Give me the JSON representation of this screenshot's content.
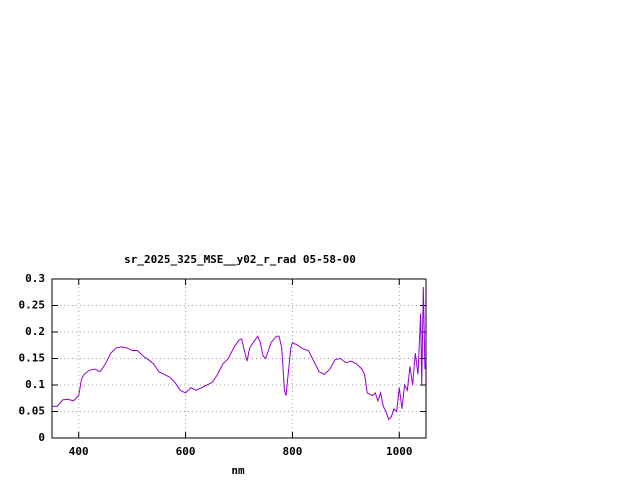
{
  "chart_data": {
    "type": "line",
    "title": "sr_2025_325_MSE__y02_r_rad 05-58-00",
    "x_label": "nm",
    "xlim": [
      350,
      1050
    ],
    "ylim": [
      0,
      0.3
    ],
    "xticks": [
      400,
      600,
      800,
      1000
    ],
    "yticks": [
      0,
      0.05,
      0.1,
      0.15,
      0.2,
      0.25,
      0.3
    ],
    "grid": true,
    "x": [
      350,
      360,
      370,
      380,
      390,
      400,
      405,
      410,
      420,
      430,
      440,
      450,
      460,
      470,
      480,
      490,
      500,
      510,
      520,
      530,
      540,
      550,
      560,
      570,
      580,
      590,
      600,
      610,
      620,
      630,
      640,
      650,
      660,
      670,
      680,
      690,
      700,
      705,
      710,
      715,
      720,
      730,
      735,
      740,
      745,
      750,
      760,
      770,
      775,
      780,
      785,
      788,
      792,
      797,
      800,
      810,
      820,
      830,
      840,
      850,
      860,
      870,
      880,
      890,
      900,
      910,
      920,
      930,
      935,
      940,
      950,
      955,
      960,
      965,
      970,
      975,
      980,
      985,
      990,
      995,
      1000,
      1005,
      1010,
      1015,
      1020,
      1025,
      1030,
      1035,
      1040,
      1042,
      1045,
      1048
    ],
    "series": [
      {
        "color": "#9400d3",
        "values": [
          0.06,
          0.06,
          0.072,
          0.073,
          0.07,
          0.08,
          0.11,
          0.12,
          0.128,
          0.13,
          0.125,
          0.14,
          0.16,
          0.17,
          0.172,
          0.17,
          0.165,
          0.165,
          0.155,
          0.148,
          0.14,
          0.125,
          0.12,
          0.115,
          0.105,
          0.09,
          0.085,
          0.095,
          0.09,
          0.095,
          0.1,
          0.105,
          0.12,
          0.14,
          0.15,
          0.17,
          0.185,
          0.187,
          0.165,
          0.145,
          0.17,
          0.185,
          0.192,
          0.18,
          0.155,
          0.15,
          0.18,
          0.192,
          0.192,
          0.17,
          0.09,
          0.08,
          0.12,
          0.17,
          0.18,
          0.175,
          0.168,
          0.165,
          0.145,
          0.125,
          0.12,
          0.13,
          0.148,
          0.15,
          0.142,
          0.145,
          0.14,
          0.13,
          0.12,
          0.085,
          0.08,
          0.085,
          0.07,
          0.085,
          0.06,
          0.05,
          0.035,
          0.04,
          0.055,
          0.05,
          0.095,
          0.055,
          0.1,
          0.09,
          0.135,
          0.1,
          0.16,
          0.12,
          0.235,
          0.1,
          0.285,
          0.13
        ]
      }
    ]
  }
}
